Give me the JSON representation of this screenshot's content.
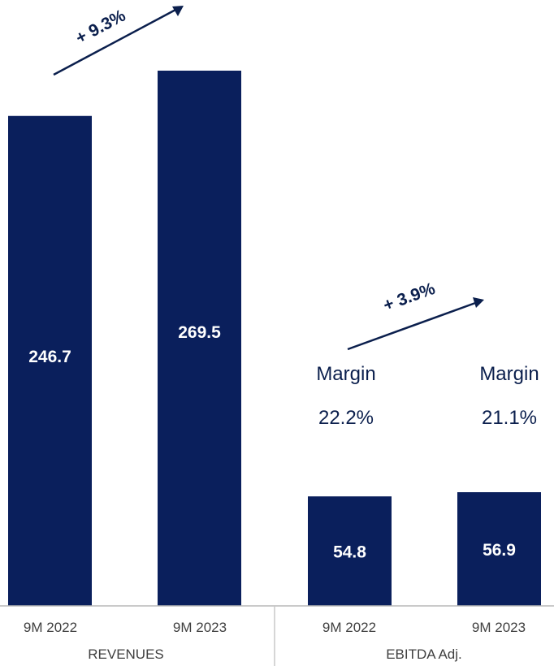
{
  "chart_data": {
    "type": "bar",
    "colors": {
      "bar": "#0a1f5c",
      "axis": "#b8b8b8",
      "annotation": "#0b1f4d",
      "tick_text": "#404040"
    },
    "groups": [
      {
        "name": "REVENUES",
        "categories": [
          "9M 2022",
          "9M 2023"
        ],
        "values": [
          246.7,
          269.5
        ],
        "value_labels": [
          "246.7",
          "269.5"
        ],
        "growth_label": "+ 9.3%"
      },
      {
        "name": "EBITDA Adj.",
        "categories": [
          "9M 2022",
          "9M 2023"
        ],
        "values": [
          54.8,
          56.9
        ],
        "value_labels": [
          "54.8",
          "56.9"
        ],
        "growth_label": "+ 3.9%",
        "margin_title": "Margin",
        "margins": [
          "22.2%",
          "21.1%"
        ]
      }
    ]
  }
}
